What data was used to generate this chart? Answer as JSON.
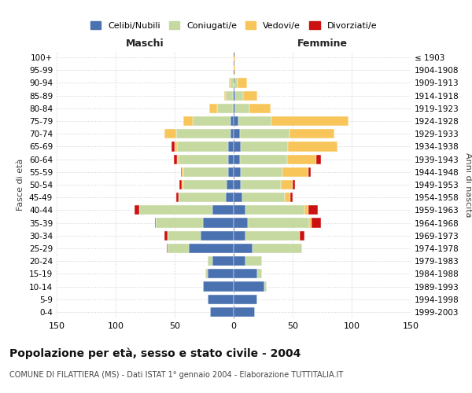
{
  "age_groups": [
    "0-4",
    "5-9",
    "10-14",
    "15-19",
    "20-24",
    "25-29",
    "30-34",
    "35-39",
    "40-44",
    "45-49",
    "50-54",
    "55-59",
    "60-64",
    "65-69",
    "70-74",
    "75-79",
    "80-84",
    "85-89",
    "90-94",
    "95-99",
    "100+"
  ],
  "birth_years": [
    "1999-2003",
    "1994-1998",
    "1989-1993",
    "1984-1988",
    "1979-1983",
    "1974-1978",
    "1969-1973",
    "1964-1968",
    "1959-1963",
    "1954-1958",
    "1949-1953",
    "1944-1948",
    "1939-1943",
    "1934-1938",
    "1929-1933",
    "1924-1928",
    "1919-1923",
    "1914-1918",
    "1909-1913",
    "1904-1908",
    "≤ 1903"
  ],
  "male": {
    "celibi": [
      20,
      22,
      26,
      22,
      18,
      38,
      28,
      26,
      18,
      7,
      6,
      5,
      5,
      5,
      3,
      3,
      1,
      1,
      0,
      0,
      0
    ],
    "coniugati": [
      0,
      0,
      0,
      2,
      4,
      18,
      28,
      40,
      62,
      40,
      37,
      38,
      42,
      43,
      46,
      32,
      13,
      6,
      3,
      0,
      0
    ],
    "vedovi": [
      0,
      0,
      0,
      0,
      0,
      0,
      0,
      0,
      0,
      0,
      1,
      1,
      1,
      2,
      10,
      8,
      7,
      1,
      1,
      0,
      0
    ],
    "divorziati": [
      0,
      0,
      0,
      0,
      0,
      1,
      3,
      1,
      4,
      2,
      2,
      1,
      3,
      3,
      0,
      0,
      0,
      0,
      0,
      0,
      0
    ]
  },
  "female": {
    "nubili": [
      18,
      20,
      26,
      20,
      10,
      16,
      10,
      12,
      10,
      7,
      6,
      6,
      5,
      6,
      5,
      4,
      1,
      1,
      0,
      0,
      0
    ],
    "coniugate": [
      0,
      0,
      2,
      4,
      14,
      42,
      46,
      52,
      50,
      36,
      34,
      35,
      40,
      40,
      42,
      28,
      12,
      7,
      3,
      0,
      0
    ],
    "vedove": [
      0,
      0,
      0,
      0,
      0,
      0,
      0,
      2,
      3,
      5,
      10,
      22,
      25,
      42,
      38,
      65,
      18,
      12,
      8,
      1,
      1
    ],
    "divorziate": [
      0,
      0,
      0,
      0,
      0,
      0,
      4,
      8,
      8,
      2,
      2,
      2,
      4,
      0,
      0,
      0,
      0,
      0,
      0,
      0,
      0
    ]
  },
  "colors": {
    "celibi": "#4a72b0",
    "coniugati": "#c5d9a0",
    "vedovi": "#f8c55a",
    "divorziati": "#cc1111"
  },
  "xlim": 150,
  "title": "Popolazione per età, sesso e stato civile - 2004",
  "subtitle": "COMUNE DI FILATTIERA (MS) - Dati ISTAT 1° gennaio 2004 - Elaborazione TUTTITALIA.IT",
  "ylabel_left": "Fasce di età",
  "ylabel_right": "Anni di nascita",
  "xlabel_left": "Maschi",
  "xlabel_right": "Femmine",
  "legend_labels": [
    "Celibi/Nubili",
    "Coniugati/e",
    "Vedovi/e",
    "Divorziati/e"
  ],
  "bg_color": "#ffffff",
  "grid_color": "#c8c8c8"
}
